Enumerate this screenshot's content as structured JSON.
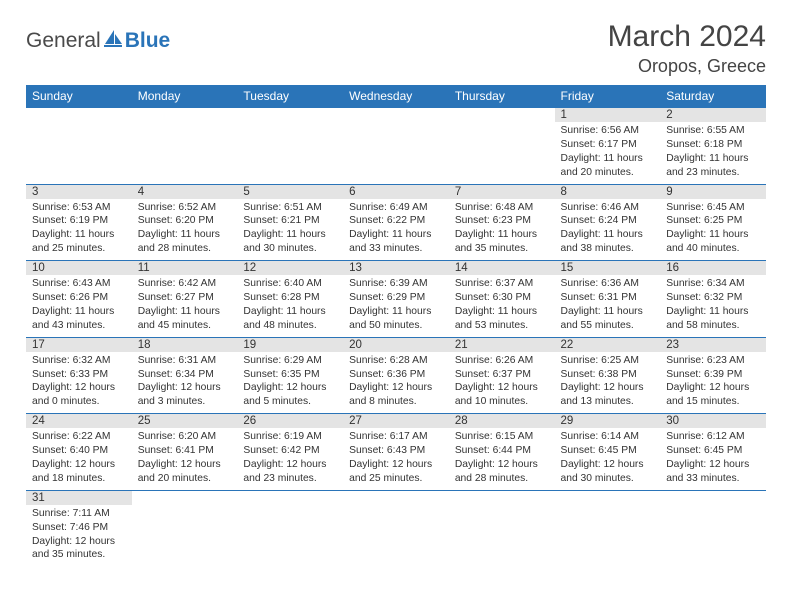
{
  "logo": {
    "text1": "General",
    "text2": "Blue"
  },
  "title": "March 2024",
  "location": "Oropos, Greece",
  "colors": {
    "header_bg": "#2a74b8",
    "header_text": "#ffffff",
    "daynum_bg": "#e4e4e4",
    "border": "#2a74b8",
    "text": "#333333",
    "logo_gray": "#4a4a4a",
    "logo_blue": "#2a74b8"
  },
  "dayNames": [
    "Sunday",
    "Monday",
    "Tuesday",
    "Wednesday",
    "Thursday",
    "Friday",
    "Saturday"
  ],
  "weeks": [
    [
      null,
      null,
      null,
      null,
      null,
      {
        "n": "1",
        "sr": "6:56 AM",
        "ss": "6:17 PM",
        "dl": "11 hours and 20 minutes."
      },
      {
        "n": "2",
        "sr": "6:55 AM",
        "ss": "6:18 PM",
        "dl": "11 hours and 23 minutes."
      }
    ],
    [
      {
        "n": "3",
        "sr": "6:53 AM",
        "ss": "6:19 PM",
        "dl": "11 hours and 25 minutes."
      },
      {
        "n": "4",
        "sr": "6:52 AM",
        "ss": "6:20 PM",
        "dl": "11 hours and 28 minutes."
      },
      {
        "n": "5",
        "sr": "6:51 AM",
        "ss": "6:21 PM",
        "dl": "11 hours and 30 minutes."
      },
      {
        "n": "6",
        "sr": "6:49 AM",
        "ss": "6:22 PM",
        "dl": "11 hours and 33 minutes."
      },
      {
        "n": "7",
        "sr": "6:48 AM",
        "ss": "6:23 PM",
        "dl": "11 hours and 35 minutes."
      },
      {
        "n": "8",
        "sr": "6:46 AM",
        "ss": "6:24 PM",
        "dl": "11 hours and 38 minutes."
      },
      {
        "n": "9",
        "sr": "6:45 AM",
        "ss": "6:25 PM",
        "dl": "11 hours and 40 minutes."
      }
    ],
    [
      {
        "n": "10",
        "sr": "6:43 AM",
        "ss": "6:26 PM",
        "dl": "11 hours and 43 minutes."
      },
      {
        "n": "11",
        "sr": "6:42 AM",
        "ss": "6:27 PM",
        "dl": "11 hours and 45 minutes."
      },
      {
        "n": "12",
        "sr": "6:40 AM",
        "ss": "6:28 PM",
        "dl": "11 hours and 48 minutes."
      },
      {
        "n": "13",
        "sr": "6:39 AM",
        "ss": "6:29 PM",
        "dl": "11 hours and 50 minutes."
      },
      {
        "n": "14",
        "sr": "6:37 AM",
        "ss": "6:30 PM",
        "dl": "11 hours and 53 minutes."
      },
      {
        "n": "15",
        "sr": "6:36 AM",
        "ss": "6:31 PM",
        "dl": "11 hours and 55 minutes."
      },
      {
        "n": "16",
        "sr": "6:34 AM",
        "ss": "6:32 PM",
        "dl": "11 hours and 58 minutes."
      }
    ],
    [
      {
        "n": "17",
        "sr": "6:32 AM",
        "ss": "6:33 PM",
        "dl": "12 hours and 0 minutes."
      },
      {
        "n": "18",
        "sr": "6:31 AM",
        "ss": "6:34 PM",
        "dl": "12 hours and 3 minutes."
      },
      {
        "n": "19",
        "sr": "6:29 AM",
        "ss": "6:35 PM",
        "dl": "12 hours and 5 minutes."
      },
      {
        "n": "20",
        "sr": "6:28 AM",
        "ss": "6:36 PM",
        "dl": "12 hours and 8 minutes."
      },
      {
        "n": "21",
        "sr": "6:26 AM",
        "ss": "6:37 PM",
        "dl": "12 hours and 10 minutes."
      },
      {
        "n": "22",
        "sr": "6:25 AM",
        "ss": "6:38 PM",
        "dl": "12 hours and 13 minutes."
      },
      {
        "n": "23",
        "sr": "6:23 AM",
        "ss": "6:39 PM",
        "dl": "12 hours and 15 minutes."
      }
    ],
    [
      {
        "n": "24",
        "sr": "6:22 AM",
        "ss": "6:40 PM",
        "dl": "12 hours and 18 minutes."
      },
      {
        "n": "25",
        "sr": "6:20 AM",
        "ss": "6:41 PM",
        "dl": "12 hours and 20 minutes."
      },
      {
        "n": "26",
        "sr": "6:19 AM",
        "ss": "6:42 PM",
        "dl": "12 hours and 23 minutes."
      },
      {
        "n": "27",
        "sr": "6:17 AM",
        "ss": "6:43 PM",
        "dl": "12 hours and 25 minutes."
      },
      {
        "n": "28",
        "sr": "6:15 AM",
        "ss": "6:44 PM",
        "dl": "12 hours and 28 minutes."
      },
      {
        "n": "29",
        "sr": "6:14 AM",
        "ss": "6:45 PM",
        "dl": "12 hours and 30 minutes."
      },
      {
        "n": "30",
        "sr": "6:12 AM",
        "ss": "6:45 PM",
        "dl": "12 hours and 33 minutes."
      }
    ],
    [
      {
        "n": "31",
        "sr": "7:11 AM",
        "ss": "7:46 PM",
        "dl": "12 hours and 35 minutes."
      },
      null,
      null,
      null,
      null,
      null,
      null
    ]
  ],
  "labels": {
    "sunrise": "Sunrise: ",
    "sunset": "Sunset: ",
    "daylight": "Daylight: "
  }
}
